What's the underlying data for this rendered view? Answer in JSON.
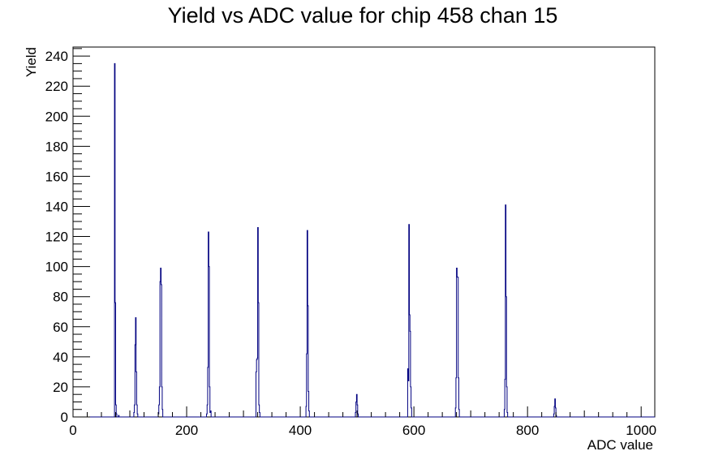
{
  "chart_data": {
    "type": "bar",
    "title": "Yield vs ADC value for chip 458 chan 15",
    "xlabel": "ADC value",
    "ylabel": "Yield",
    "xlim": [
      0,
      1024
    ],
    "ylim": [
      0,
      246
    ],
    "xticks": [
      0,
      200,
      400,
      600,
      800,
      1000
    ],
    "yticks": [
      0,
      20,
      40,
      60,
      80,
      100,
      120,
      140,
      160,
      180,
      200,
      220,
      240
    ],
    "grid": false,
    "legend": "none",
    "bar_color": "#000080",
    "bins": [
      [
        72,
        0
      ],
      [
        73,
        235
      ],
      [
        74,
        76
      ],
      [
        75,
        8
      ],
      [
        76,
        2
      ],
      [
        80,
        1
      ],
      [
        107,
        3
      ],
      [
        108,
        8
      ],
      [
        109,
        48
      ],
      [
        110,
        66
      ],
      [
        111,
        30
      ],
      [
        112,
        8
      ],
      [
        113,
        2
      ],
      [
        150,
        2
      ],
      [
        151,
        8
      ],
      [
        152,
        20
      ],
      [
        153,
        90
      ],
      [
        154,
        99
      ],
      [
        155,
        88
      ],
      [
        156,
        20
      ],
      [
        157,
        5
      ],
      [
        235,
        2
      ],
      [
        236,
        8
      ],
      [
        237,
        33
      ],
      [
        238,
        123
      ],
      [
        239,
        100
      ],
      [
        240,
        20
      ],
      [
        241,
        3
      ],
      [
        242,
        4
      ],
      [
        322,
        30
      ],
      [
        323,
        38
      ],
      [
        324,
        39
      ],
      [
        325,
        126
      ],
      [
        326,
        76
      ],
      [
        327,
        8
      ],
      [
        328,
        3
      ],
      [
        410,
        7
      ],
      [
        411,
        42
      ],
      [
        412,
        124
      ],
      [
        413,
        74
      ],
      [
        414,
        17
      ],
      [
        415,
        4
      ],
      [
        497,
        3
      ],
      [
        498,
        10
      ],
      [
        499,
        15
      ],
      [
        500,
        8
      ],
      [
        501,
        2
      ],
      [
        589,
        32
      ],
      [
        590,
        24
      ],
      [
        591,
        128
      ],
      [
        592,
        68
      ],
      [
        593,
        57
      ],
      [
        594,
        20
      ],
      [
        595,
        6
      ],
      [
        673,
        6
      ],
      [
        674,
        26
      ],
      [
        675,
        99
      ],
      [
        676,
        93
      ],
      [
        677,
        93
      ],
      [
        678,
        26
      ],
      [
        679,
        5
      ],
      [
        759,
        5
      ],
      [
        760,
        25
      ],
      [
        761,
        141
      ],
      [
        762,
        80
      ],
      [
        763,
        20
      ],
      [
        764,
        3
      ],
      [
        846,
        2
      ],
      [
        847,
        7
      ],
      [
        848,
        12
      ],
      [
        849,
        6
      ],
      [
        850,
        1
      ]
    ]
  }
}
